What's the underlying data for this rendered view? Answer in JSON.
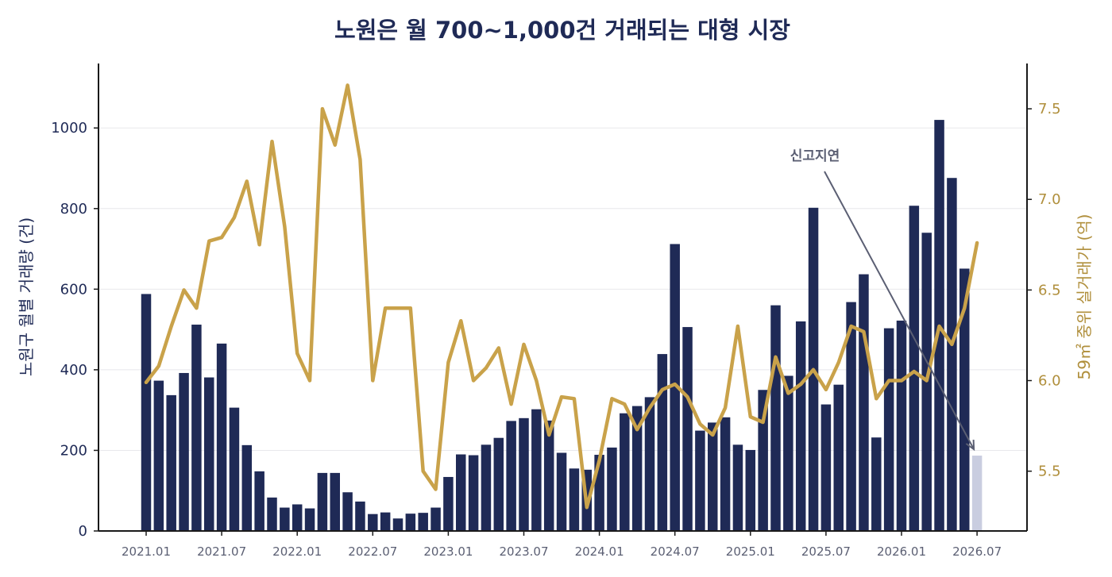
{
  "chart_data": {
    "type": "bar",
    "title": "노원은 월 700~1,000건 거래되는 대형 시장",
    "x": [
      "2021.01",
      "2021.02",
      "2021.03",
      "2021.04",
      "2021.05",
      "2021.06",
      "2021.07",
      "2021.08",
      "2021.09",
      "2021.10",
      "2021.11",
      "2021.12",
      "2022.01",
      "2022.02",
      "2022.03",
      "2022.04",
      "2022.05",
      "2022.06",
      "2022.07",
      "2022.08",
      "2022.09",
      "2022.10",
      "2022.11",
      "2022.12",
      "2023.01",
      "2023.02",
      "2023.03",
      "2023.04",
      "2023.05",
      "2023.06",
      "2023.07",
      "2023.08",
      "2023.09",
      "2023.10",
      "2023.11",
      "2023.12",
      "2024.01",
      "2024.02",
      "2024.03",
      "2024.04",
      "2024.05",
      "2024.06",
      "2024.07",
      "2024.08",
      "2024.09",
      "2024.10",
      "2024.11",
      "2024.12",
      "2025.01",
      "2025.02",
      "2025.03",
      "2025.04",
      "2025.05",
      "2025.06",
      "2025.07",
      "2025.08",
      "2025.09",
      "2025.10",
      "2025.11",
      "2025.12",
      "2026.01",
      "2026.02",
      "2026.03",
      "2026.04",
      "2026.05",
      "2026.06",
      "2026.07"
    ],
    "xticks": [
      "2021.01",
      "2021.07",
      "2022.01",
      "2022.07",
      "2023.01",
      "2023.07",
      "2024.01",
      "2024.07",
      "2025.01",
      "2025.07",
      "2026.01",
      "2026.07"
    ],
    "series": [
      {
        "axis": "left",
        "kind": "bar",
        "values": [
          588,
          373,
          337,
          392,
          512,
          381,
          465,
          306,
          213,
          148,
          83,
          58,
          66,
          56,
          144,
          144,
          96,
          73,
          42,
          46,
          31,
          43,
          45,
          58,
          134,
          190,
          188,
          214,
          231,
          273,
          280,
          302,
          274,
          194,
          155,
          152,
          189,
          207,
          292,
          310,
          332,
          439,
          712,
          506,
          249,
          269,
          282,
          214,
          201,
          350,
          560,
          385,
          520,
          802,
          314,
          363,
          568,
          637,
          232,
          503,
          522,
          807,
          740,
          1020,
          876,
          651,
          187
        ],
        "last_value_pending": true
      },
      {
        "axis": "right",
        "kind": "line",
        "values": [
          5.99,
          6.08,
          6.3,
          6.5,
          6.4,
          6.77,
          6.79,
          6.9,
          7.1,
          6.75,
          7.32,
          6.85,
          6.15,
          6.0,
          7.5,
          7.3,
          7.63,
          7.22,
          6.0,
          6.4,
          6.4,
          6.4,
          5.5,
          5.4,
          6.1,
          6.33,
          6.0,
          6.07,
          6.18,
          5.87,
          6.2,
          6.0,
          5.7,
          5.91,
          5.9,
          5.3,
          5.56,
          5.9,
          5.87,
          5.73,
          5.85,
          5.95,
          5.98,
          5.91,
          5.76,
          5.7,
          5.85,
          6.3,
          5.8,
          5.77,
          6.13,
          5.93,
          5.98,
          6.06,
          5.95,
          6.1,
          6.3,
          6.27,
          5.9,
          6.0,
          6.0,
          6.05,
          6.0,
          6.3,
          6.2,
          6.4,
          6.76
        ]
      }
    ],
    "ylabel_left": "노원구 월별 거래량 (건)",
    "ylabel_right": "59㎡ 중위 실거래가 (억)",
    "ylim_left": [
      0,
      1160
    ],
    "ylim_right": [
      5.17,
      7.75
    ],
    "yticks_left": [
      "0",
      "200",
      "400",
      "600",
      "800",
      "1000"
    ],
    "yticks_right": [
      "5.5",
      "6.0",
      "6.5",
      "7.0",
      "7.5"
    ],
    "annotation": "신고지연",
    "grid": true,
    "colors": {
      "bar": "#1f2a56",
      "bar_pending": "#c9cde0",
      "line": "#c9a24a",
      "title": "#1f2a56",
      "right_axis": "#b08f3c",
      "annotation": "#5b5f73"
    }
  }
}
